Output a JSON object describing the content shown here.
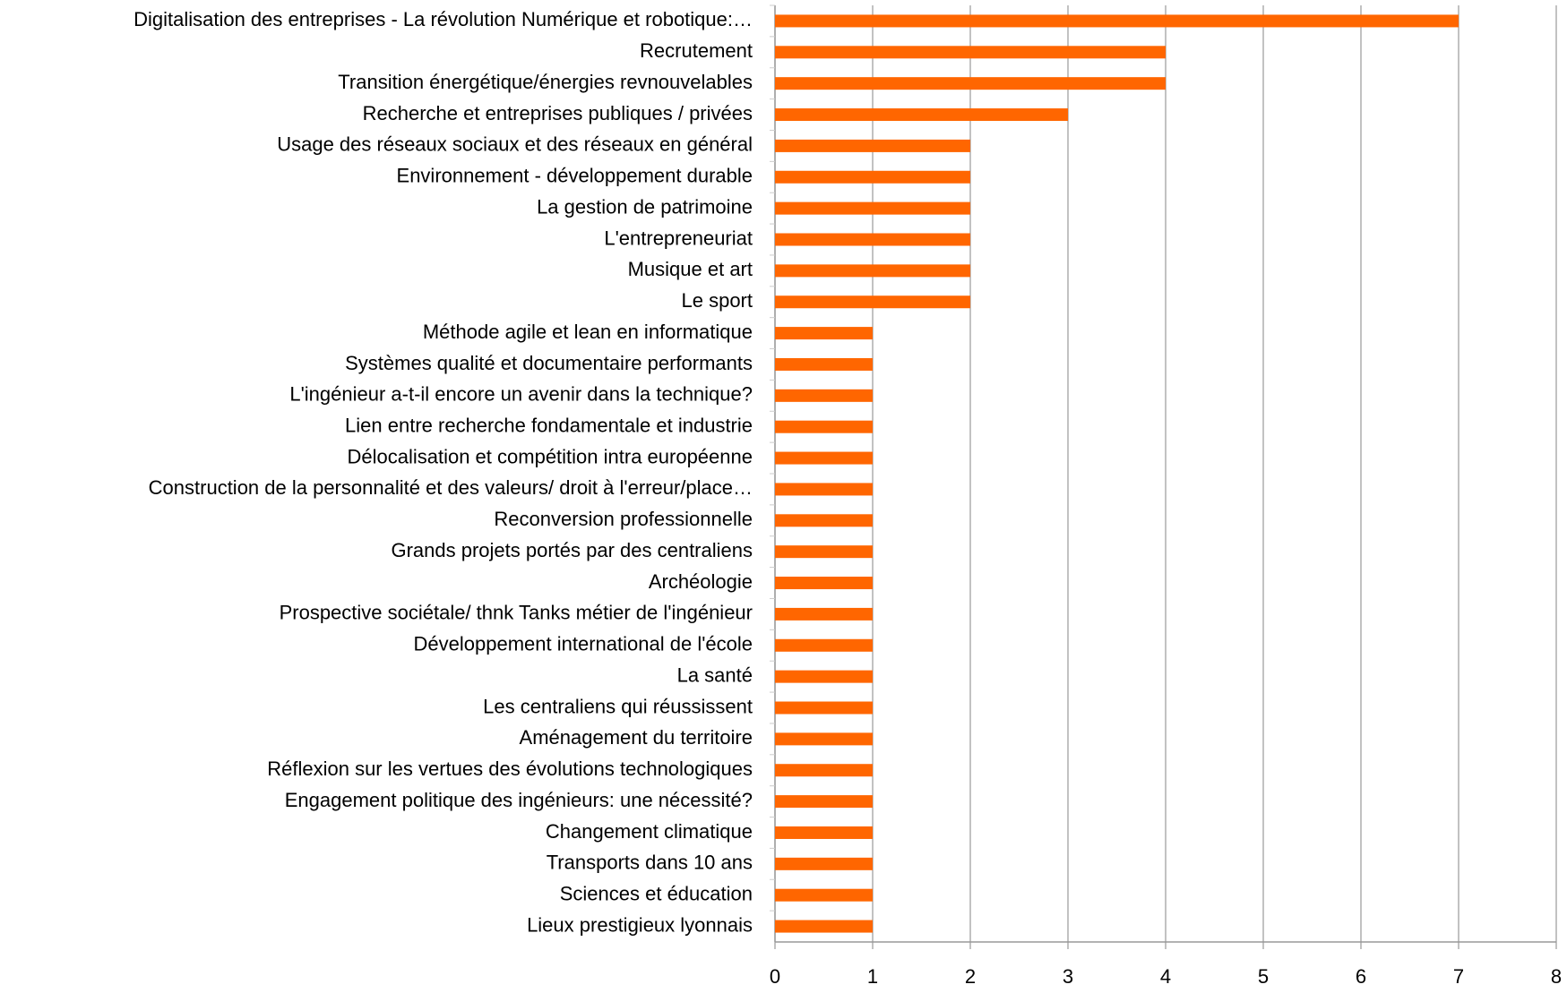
{
  "chart_data": {
    "type": "barh",
    "categories": [
      "Digitalisation des entreprises - La révolution Numérique et robotique:…",
      "Recrutement",
      "Transition énergétique/énergies revnouvelables",
      "Recherche et entreprises publiques / privées",
      "Usage des réseaux sociaux et des réseaux en général",
      "Environnement - développement durable",
      "La gestion de patrimoine",
      "L'entrepreneuriat",
      "Musique et art",
      "Le sport",
      "Méthode agile et lean en informatique",
      "Systèmes qualité et documentaire performants",
      "L'ingénieur a-t-il encore un avenir dans la technique?",
      "Lien entre recherche fondamentale et industrie",
      "Délocalisation et compétition intra européenne",
      "Construction de la personnalité et des valeurs/ droit à l'erreur/place…",
      "Reconversion professionnelle",
      "Grands projets portés par des centraliens",
      "Archéologie",
      "Prospective sociétale/ thnk Tanks métier de l'ingénieur",
      "Développement international de l'école",
      "La santé",
      "Les centraliens qui réussissent",
      "Aménagement du territoire",
      "Réflexion sur les vertues des évolutions technologiques",
      "Engagement politique des ingénieurs: une nécessité?",
      "Changement climatique ",
      "Transports dans 10 ans",
      "Sciences et éducation",
      "Lieux prestigieux lyonnais"
    ],
    "values": [
      7,
      4,
      4,
      3,
      2,
      2,
      2,
      2,
      2,
      2,
      1,
      1,
      1,
      1,
      1,
      1,
      1,
      1,
      1,
      1,
      1,
      1,
      1,
      1,
      1,
      1,
      1,
      1,
      1,
      1
    ],
    "color": "#ff6600",
    "xlim": [
      0,
      8
    ],
    "xticks": [
      0,
      1,
      2,
      3,
      4,
      5,
      6,
      7,
      8
    ],
    "grid": true
  }
}
